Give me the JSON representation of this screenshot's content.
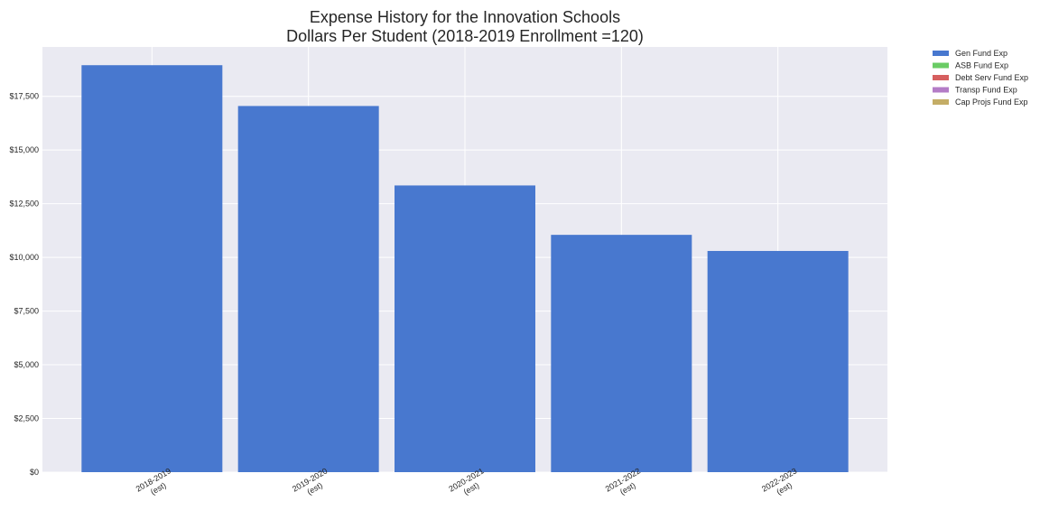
{
  "chart_data": {
    "type": "bar",
    "title": "Expense History for the Innovation Schools",
    "subtitle": "Dollars Per Student (2018-2019 Enrollment =120)",
    "categories": [
      [
        "2018-2019",
        "(est)"
      ],
      [
        "2019-2020",
        "(est)"
      ],
      [
        "2020-2021",
        "(est)"
      ],
      [
        "2021-2022",
        "(est)"
      ],
      [
        "2022-2023",
        "(est)"
      ]
    ],
    "series": [
      {
        "name": "Gen Fund Exp",
        "color": "#4878cf",
        "values": [
          18950,
          17050,
          13350,
          11050,
          10300
        ]
      },
      {
        "name": "ASB Fund Exp",
        "color": "#6acc65",
        "values": [
          0,
          0,
          0,
          0,
          0
        ]
      },
      {
        "name": "Debt Serv Fund Exp",
        "color": "#d65f5f",
        "values": [
          0,
          0,
          0,
          0,
          0
        ]
      },
      {
        "name": "Transp Fund Exp",
        "color": "#b47cc7",
        "values": [
          0,
          0,
          0,
          0,
          0
        ]
      },
      {
        "name": "Cap Projs Fund Exp",
        "color": "#c4ad66",
        "values": [
          0,
          0,
          0,
          0,
          0
        ]
      }
    ],
    "ylim": [
      0,
      19800
    ],
    "yticks": [
      0,
      2500,
      5000,
      7500,
      10000,
      12500,
      15000,
      17500
    ],
    "ytick_labels": [
      "$0",
      "$2,500",
      "$5,000",
      "$7,500",
      "$10,000",
      "$12,500",
      "$15,000",
      "$17,500"
    ],
    "xlabel": "",
    "ylabel": "",
    "stacked": true,
    "grid": true,
    "legend": "outside-top-right",
    "background_color": "#eaeaf2",
    "grid_color": "#ffffff"
  }
}
